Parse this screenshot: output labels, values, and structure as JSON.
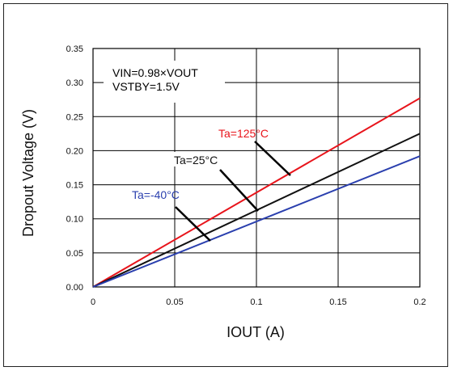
{
  "chart_data": {
    "type": "line",
    "xlabel": "IOUT (A)",
    "ylabel": "Dropout Voltage (V)",
    "xlim": [
      0,
      0.2
    ],
    "ylim": [
      0,
      0.35
    ],
    "x_ticks": [
      "0",
      "0.05",
      "0.1",
      "0.15",
      "0.2"
    ],
    "y_ticks": [
      "0.00",
      "0.05",
      "0.10",
      "0.15",
      "0.20",
      "0.25",
      "0.30",
      "0.35"
    ],
    "grid": true,
    "annotation_lines": [
      "VIN=0.98×VOUT",
      "VSTBY=1.5V"
    ],
    "series": [
      {
        "name": "Ta=125°C",
        "color": "#e8141b",
        "x": [
          0,
          0.2
        ],
        "y": [
          0,
          0.277
        ]
      },
      {
        "name": "Ta=25°C",
        "color": "#111111",
        "x": [
          0,
          0.2
        ],
        "y": [
          0,
          0.225
        ]
      },
      {
        "name": "Ta=-40°C",
        "color": "#2a3fae",
        "x": [
          0,
          0.2
        ],
        "y": [
          0,
          0.192
        ]
      }
    ]
  }
}
